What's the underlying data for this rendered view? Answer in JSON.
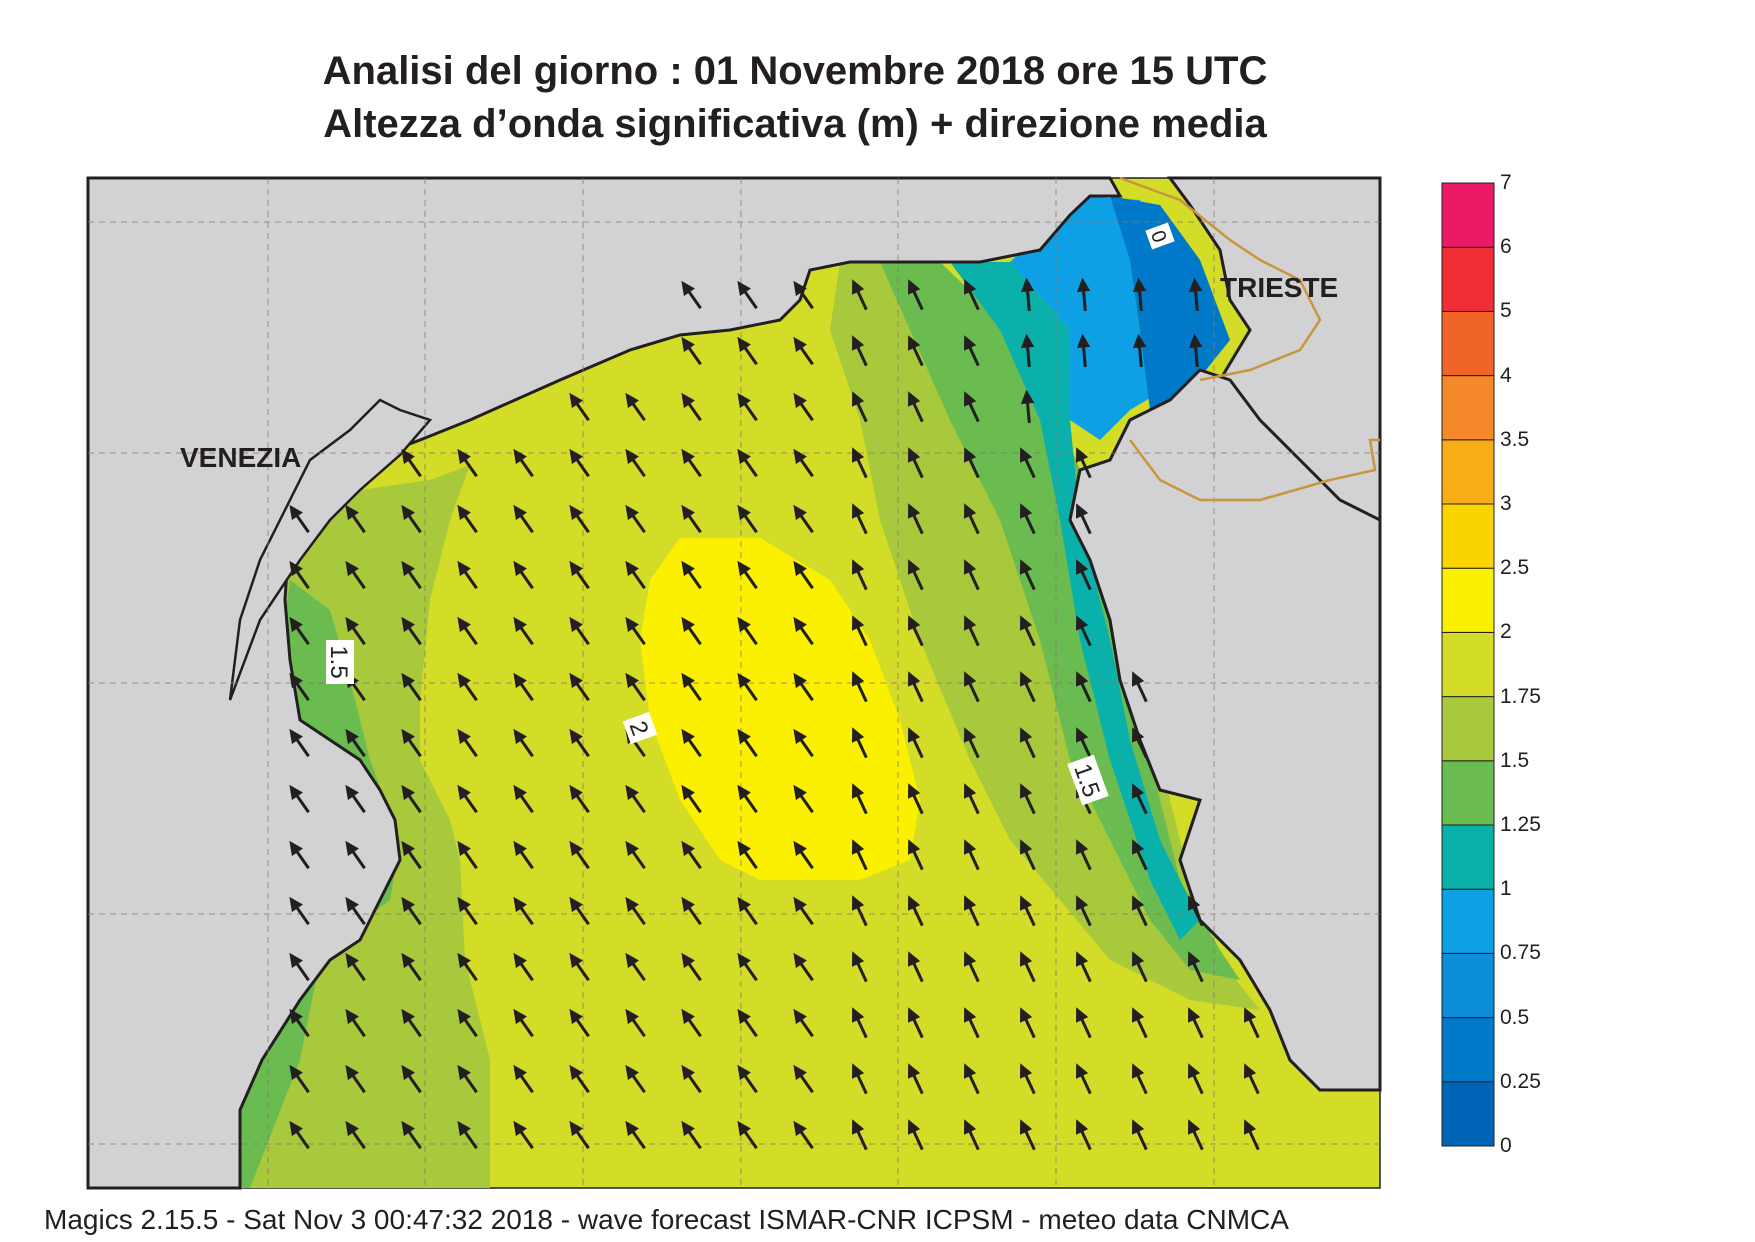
{
  "header": {
    "title_line1": "Analisi del giorno :  01 Novembre  2018   ore 15 UTC",
    "title_line2": "Altezza d’onda significativa (m) + direzione media"
  },
  "places": {
    "venezia": "VENEZIA",
    "trieste": "TRIESTE"
  },
  "contour_labels": [
    "1.5",
    "2",
    "1.5",
    "0"
  ],
  "legend": {
    "levels": [
      "0",
      "0.25",
      "0.5",
      "0.75",
      "1",
      "1.25",
      "1.5",
      "1.75",
      "2",
      "2.5",
      "3",
      "3.5",
      "4",
      "5",
      "6",
      "7"
    ],
    "colors": [
      "#0065b8",
      "#0079c8",
      "#0d8ed8",
      "#0ea0e4",
      "#0ab0aa",
      "#6abb50",
      "#a7c93b",
      "#d3dc26",
      "#fbf000",
      "#fbd400",
      "#f8ac18",
      "#f4882a",
      "#f0642a",
      "#ee2d34",
      "#ec1a66"
    ]
  },
  "map_colors": {
    "land": "#d2d2d4",
    "coast": "#231f20",
    "border": "#c8963c"
  },
  "footer": "Magics 2.15.5 - Sat Nov  3 00:47:32 2018 - wave forecast  ISMAR-CNR  ICPSM - meteo data   CNMCA"
}
